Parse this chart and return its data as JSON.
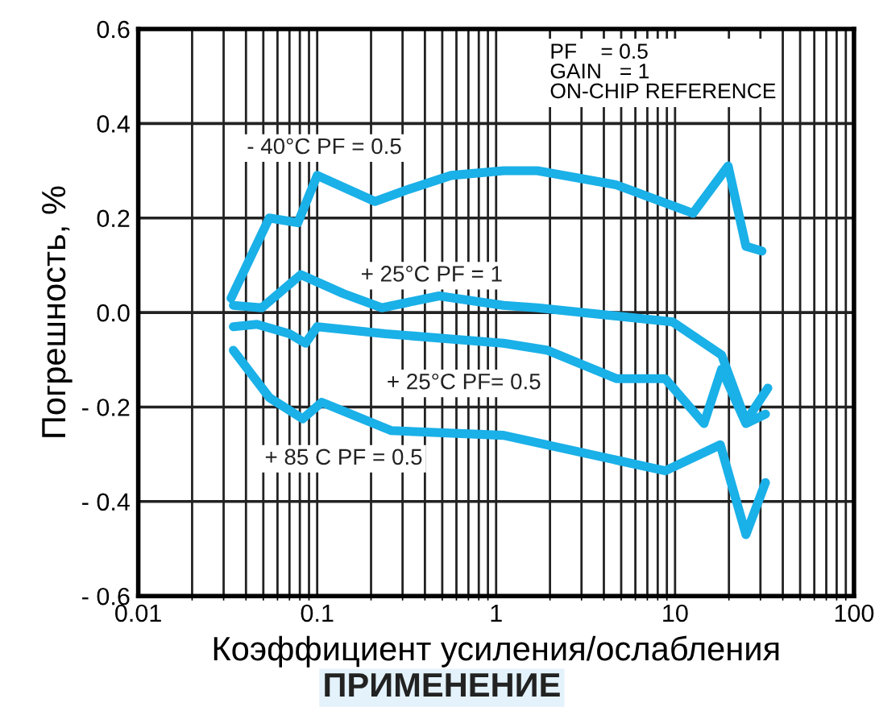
{
  "chart_data": {
    "type": "line",
    "xlabel": "Коэффициент усиления/ослабления",
    "ylabel": "Погрешность, %",
    "log": "x",
    "xlim": [
      0.01,
      100
    ],
    "xticks": [
      0.01,
      0.1,
      1,
      10,
      100
    ],
    "ylim": [
      -0.6,
      0.6
    ],
    "yticks": [
      {
        "value": 0.6,
        "label": "0.6"
      },
      {
        "value": 0.4,
        "label": "0.4"
      },
      {
        "value": 0.2,
        "label": "0.2"
      },
      {
        "value": 0.0,
        "label": "0.0"
      },
      {
        "value": -0.2,
        "label": "- 0.2"
      },
      {
        "value": -0.4,
        "label": "- 0.4"
      },
      {
        "value": -0.6,
        "label": "- 0.6"
      }
    ],
    "grid": true,
    "legend": false,
    "marker": "none",
    "line_style": "solid",
    "series": [
      {
        "name": "- 40°C PF = 0.5",
        "color": "#1ab0e8",
        "x": [
          0.033,
          0.054,
          0.078,
          0.1,
          0.21,
          0.32,
          0.56,
          1.1,
          1.7,
          4.7,
          12.6,
          19.8,
          24.9,
          30.6
        ],
        "values": [
          0.03,
          0.2,
          0.19,
          0.29,
          0.235,
          0.26,
          0.29,
          0.3,
          0.3,
          0.27,
          0.21,
          0.31,
          0.14,
          0.13
        ]
      },
      {
        "name": "+ 25°C PF = 1",
        "color": "#1ab0e8",
        "x": [
          0.034,
          0.049,
          0.081,
          0.14,
          0.23,
          0.48,
          1.1,
          1.7,
          9.7,
          18.2,
          24.9,
          33
        ],
        "values": [
          0.015,
          0.01,
          0.08,
          0.04,
          0.01,
          0.035,
          0.015,
          0.01,
          -0.02,
          -0.09,
          -0.23,
          -0.16
        ]
      },
      {
        "name": "+ 25°C PF= 0.5",
        "color": "#1ab0e8",
        "x": [
          0.034,
          0.046,
          0.07,
          0.086,
          0.1,
          0.24,
          1.1,
          1.94,
          4.7,
          8.8,
          14.5,
          18.2,
          24.9,
          32
        ],
        "values": [
          -0.03,
          -0.025,
          -0.045,
          -0.065,
          -0.03,
          -0.045,
          -0.065,
          -0.08,
          -0.14,
          -0.14,
          -0.235,
          -0.12,
          -0.235,
          -0.215
        ]
      },
      {
        "name": "+ 85 C PF = 0.5",
        "color": "#1ab0e8",
        "x": [
          0.034,
          0.054,
          0.083,
          0.106,
          0.26,
          1.1,
          8.8,
          17.9,
          24.9,
          32
        ],
        "values": [
          -0.08,
          -0.18,
          -0.225,
          -0.19,
          -0.25,
          -0.26,
          -0.335,
          -0.28,
          -0.47,
          -0.36
        ]
      }
    ],
    "annotations": [
      "PF    = 0.5\nGAIN   = 1\nON-CHIP REFERENCE",
      "ПРИМЕНЕНИЕ"
    ]
  }
}
